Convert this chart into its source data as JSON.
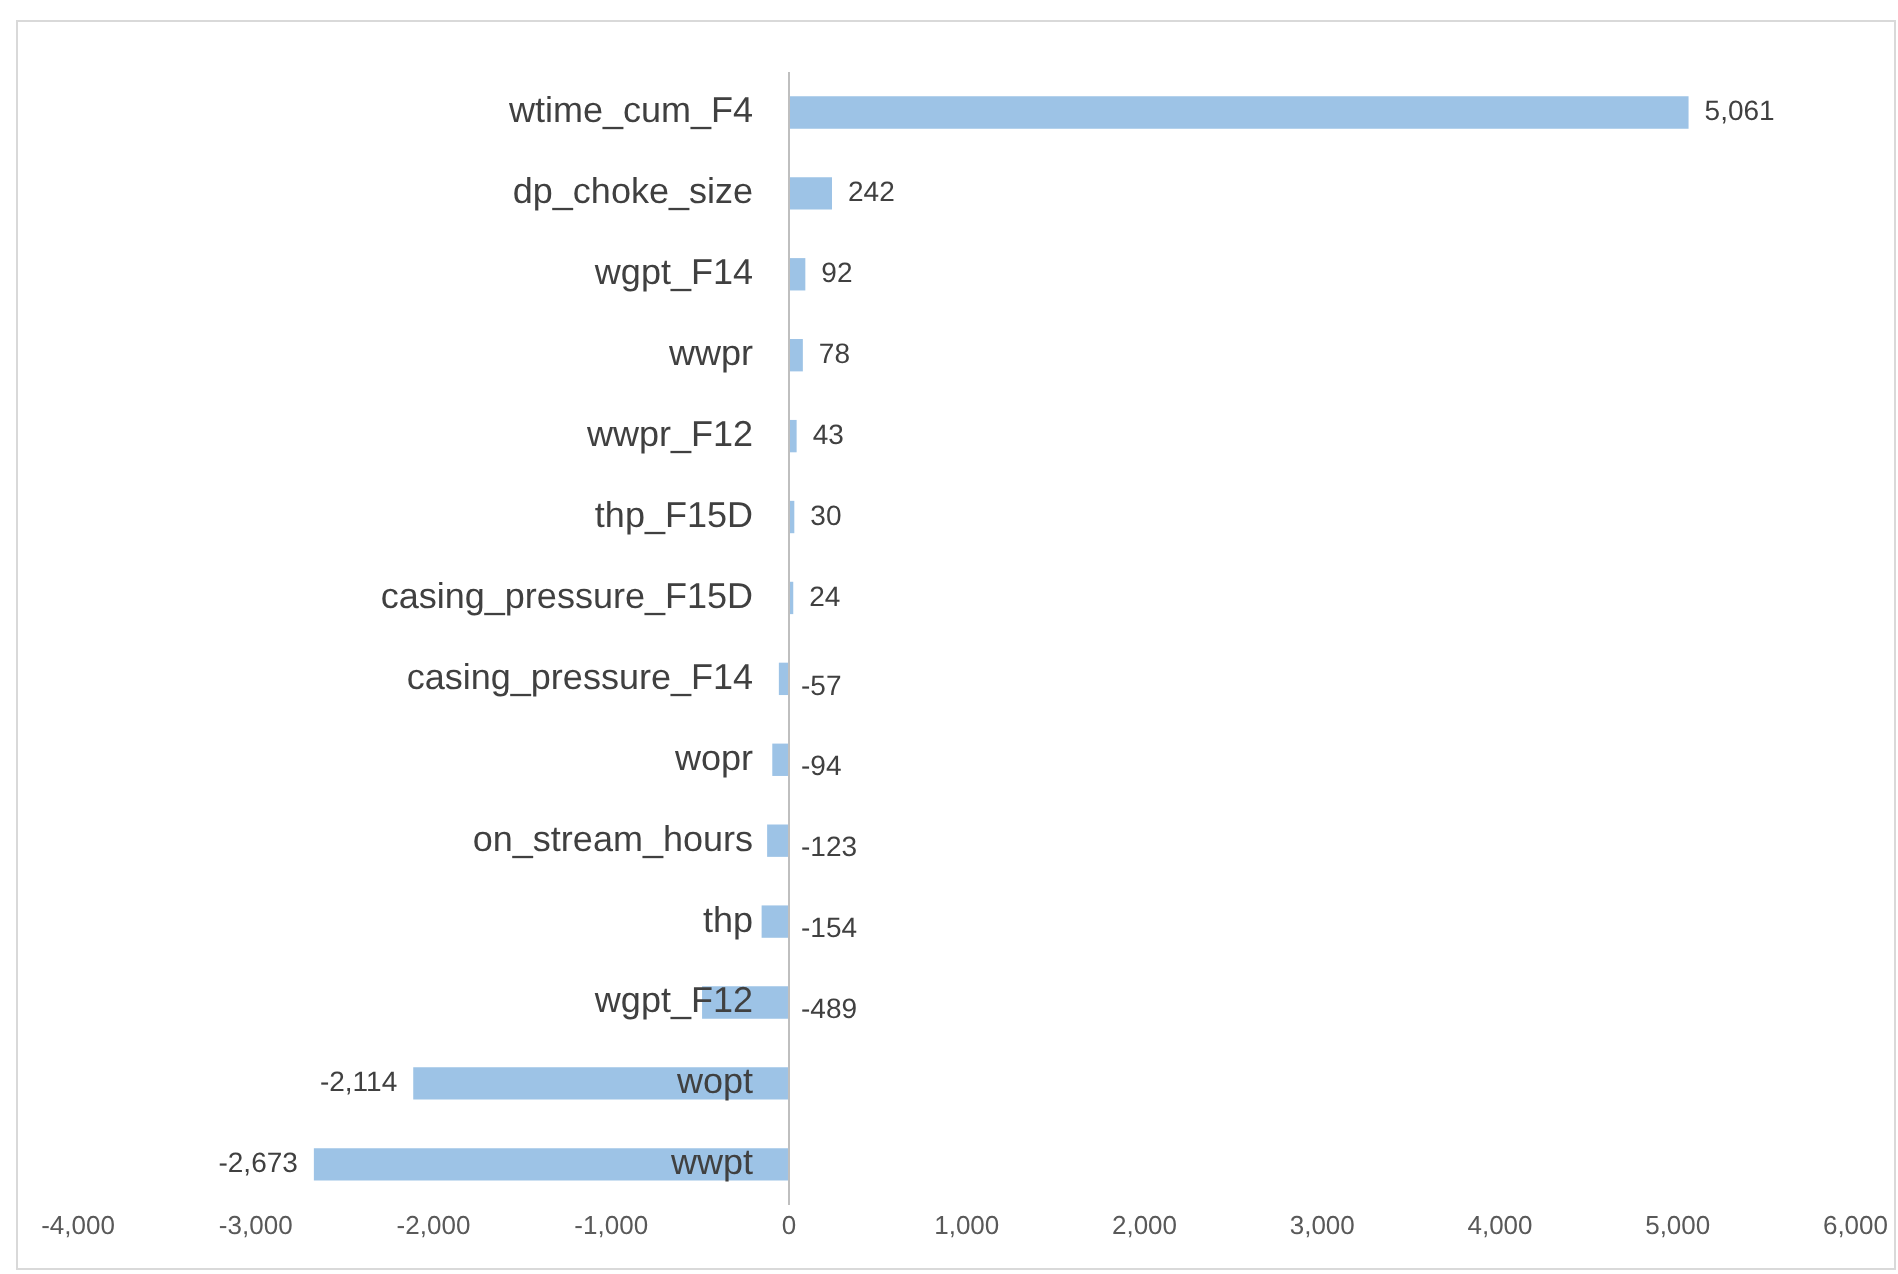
{
  "chart_data": {
    "type": "bar",
    "orientation": "horizontal",
    "categories": [
      "wtime_cum_F4",
      "dp_choke_size",
      "wgpt_F14",
      "wwpr",
      "wwpr_F12",
      "thp_F15D",
      "casing_pressure_F15D",
      "casing_pressure_F14",
      "wopr",
      "on_stream_hours",
      "thp",
      "wgpt_F12",
      "wopt",
      "wwpt"
    ],
    "values": [
      5061,
      242,
      92,
      78,
      43,
      30,
      24,
      -57,
      -94,
      -123,
      -154,
      -489,
      -2114,
      -2673
    ],
    "value_labels": [
      "5,061",
      "242",
      "92",
      "78",
      "43",
      "30",
      "24",
      "-57",
      "-94",
      "-123",
      "-154",
      "-489",
      "-2,114",
      "-2,673"
    ],
    "color": "#9dc3e6",
    "xlim": [
      -4000,
      6000
    ],
    "xticks": [
      {
        "value": -4000,
        "label": "-4,000"
      },
      {
        "value": -3000,
        "label": "-3,000"
      },
      {
        "value": -2000,
        "label": "-2,000"
      },
      {
        "value": -1000,
        "label": "-1,000"
      },
      0,
      {
        "value": 1000,
        "label": "1,000"
      },
      {
        "value": 2000,
        "label": "2,000"
      },
      {
        "value": 3000,
        "label": "3,000"
      },
      {
        "value": 4000,
        "label": "4,000"
      },
      {
        "value": 5000,
        "label": "5,000"
      },
      {
        "value": 6000,
        "label": "6,000"
      }
    ],
    "grid": false,
    "legend": false
  }
}
